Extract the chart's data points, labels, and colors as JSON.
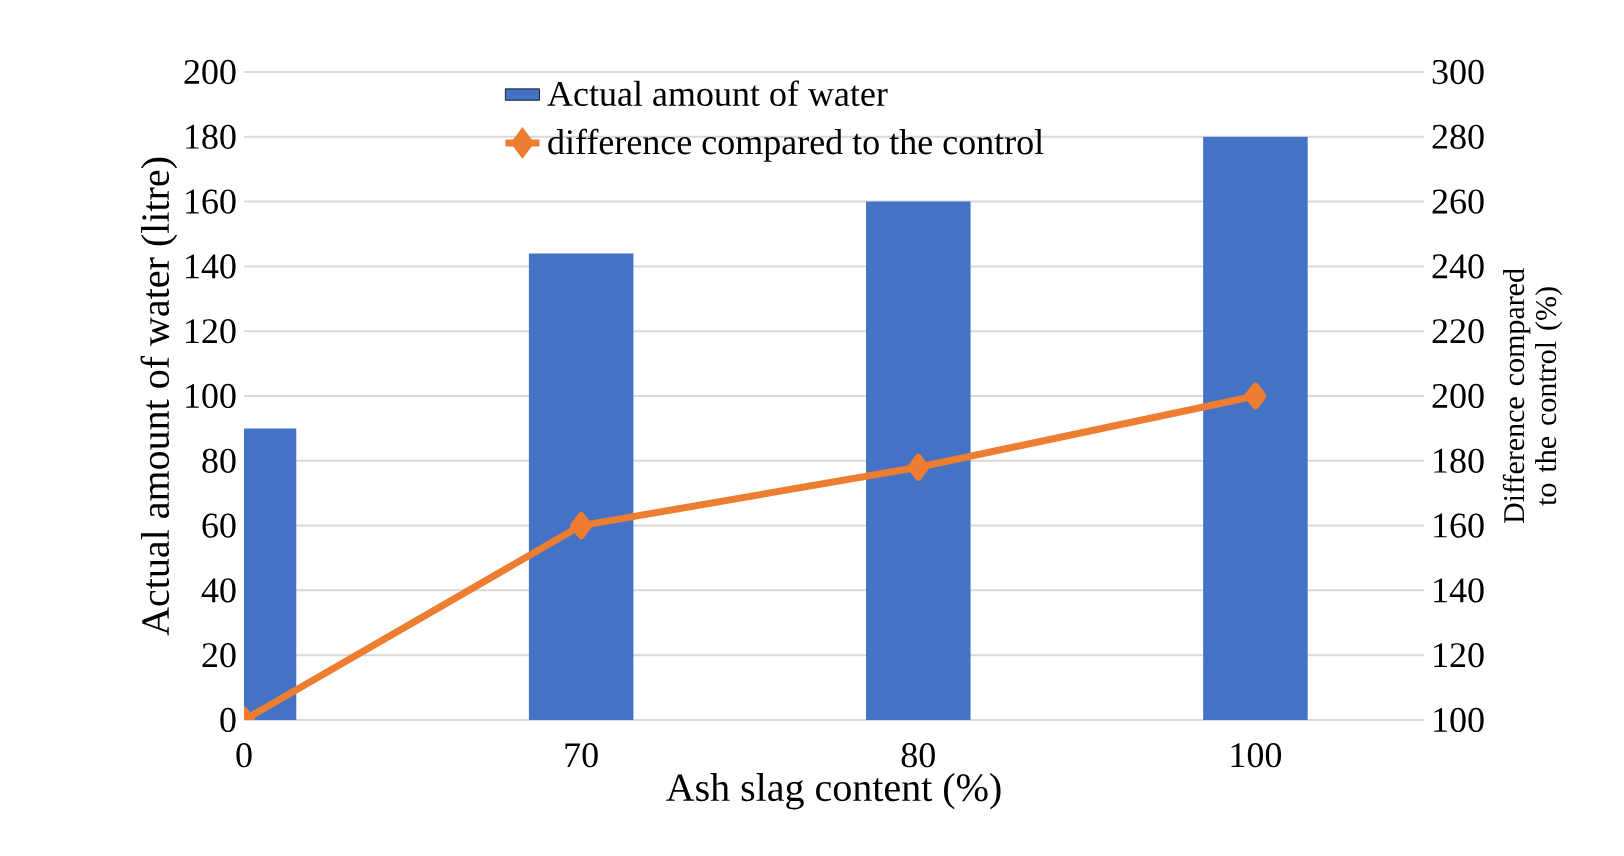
{
  "chart_data": {
    "type": "bar",
    "xlabel": "Ash slag content (%)",
    "ylabel": "Actual amount of water (litre)",
    "y2label": "Difference compared to the control (%)",
    "categories": [
      "0",
      "70",
      "80",
      "100"
    ],
    "series": [
      {
        "name": "Actual amount of water",
        "color": "#4472c4",
        "values": [
          90,
          144,
          160,
          180
        ]
      },
      {
        "name": "difference compared to the control",
        "type": "line",
        "axis": "y2",
        "color": "#ed7d31",
        "values": [
          100,
          160,
          178,
          200
        ]
      }
    ],
    "ylim": [
      0,
      200
    ],
    "yticks": [
      0,
      20,
      40,
      60,
      80,
      100,
      120,
      140,
      160,
      180,
      200
    ],
    "y2lim": [
      100,
      300
    ],
    "y2ticks": [
      100,
      120,
      140,
      160,
      180,
      200,
      220,
      240,
      260,
      280,
      300
    ],
    "grid": "y",
    "legend": "top",
    "marker": "diamond"
  }
}
